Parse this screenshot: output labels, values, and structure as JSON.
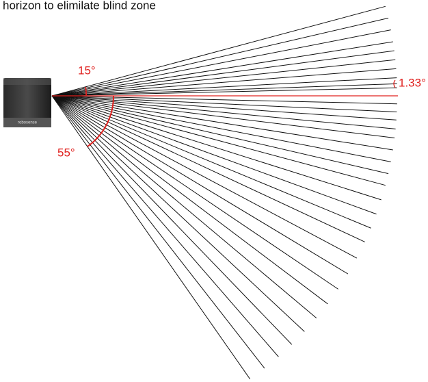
{
  "caption": "horizon to elimilate blind zone",
  "device": {
    "label": "robosense"
  },
  "annotations": {
    "upper_angle": "15°",
    "lower_angle": "55°",
    "resolution": "1.33°"
  }
}
